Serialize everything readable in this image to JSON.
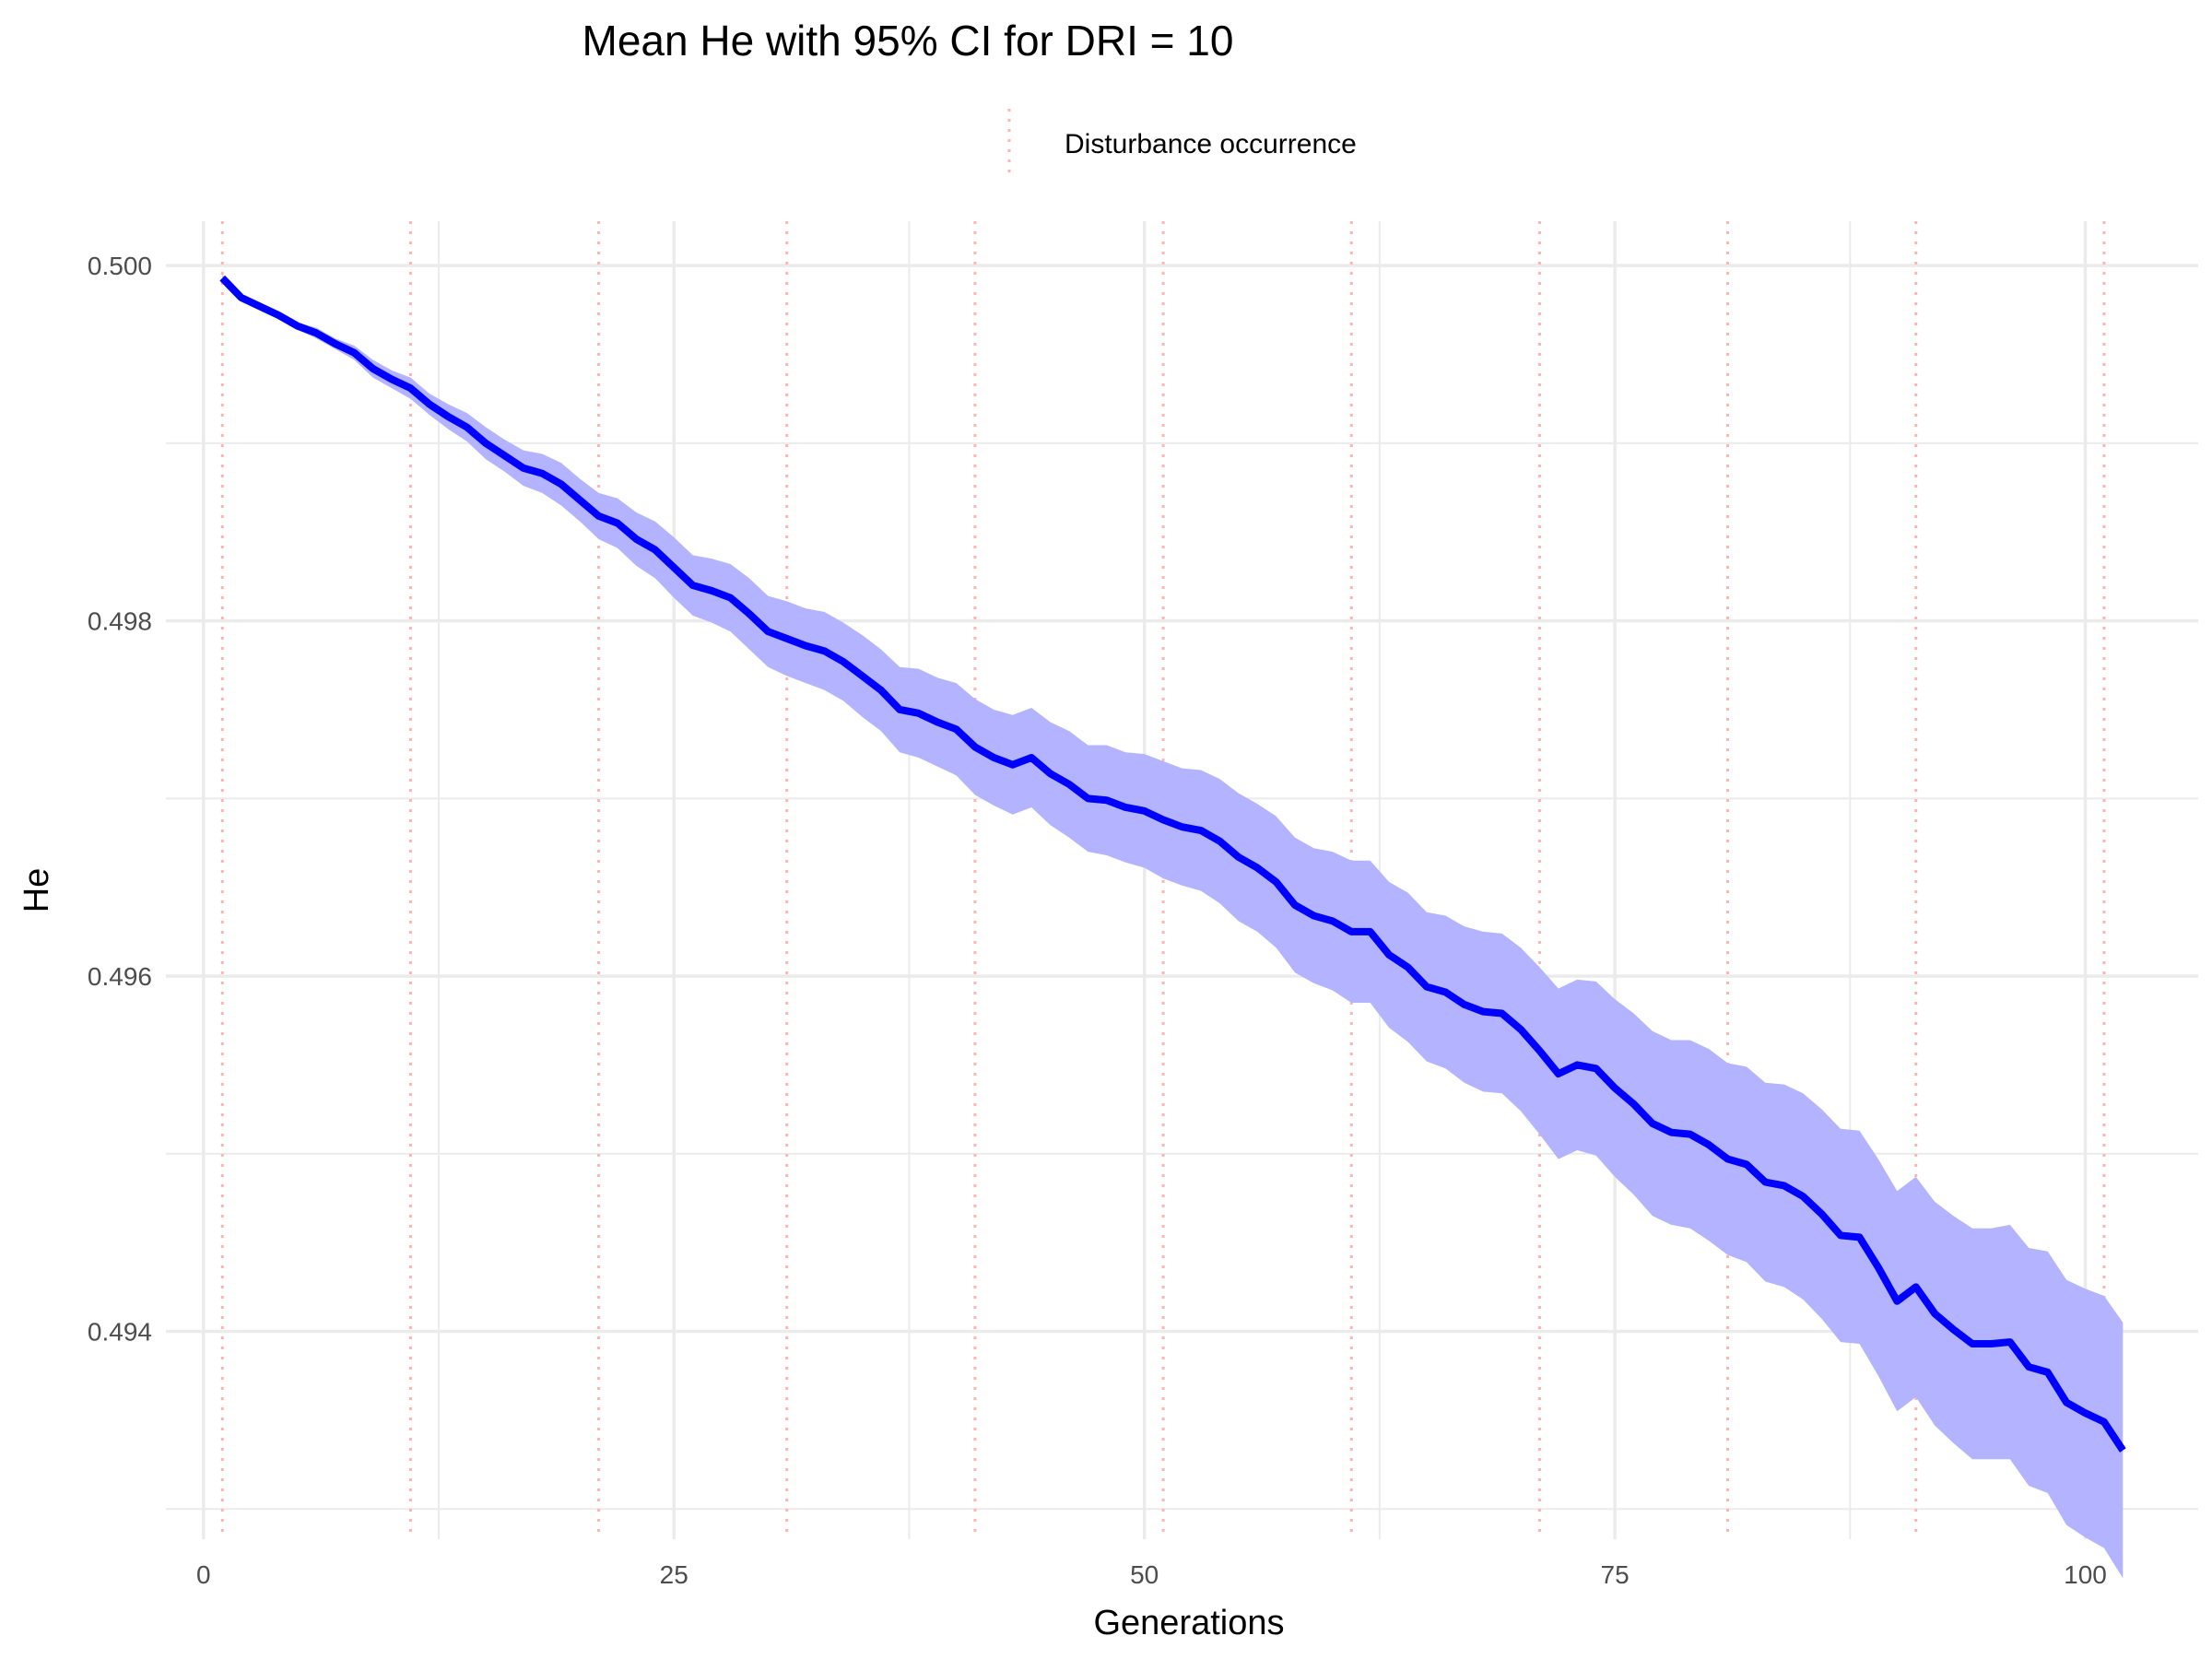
{
  "chart_data": {
    "type": "line",
    "title": "Mean He with 95% CI for DRI = 10",
    "xlabel": "Generations",
    "ylabel": "He",
    "xlim": [
      -2,
      106
    ],
    "ylim": [
      0.49283,
      0.50025
    ],
    "x_ticks": [
      0,
      25,
      50,
      75,
      100
    ],
    "x_tick_labels": [
      "0",
      "25",
      "50",
      "75",
      "100"
    ],
    "y_ticks": [
      0.494,
      0.496,
      0.498,
      0.5
    ],
    "y_tick_labels": [
      "0.494",
      "0.496",
      "0.498",
      "0.500"
    ],
    "grid": true,
    "legend": {
      "position": "top",
      "entries": [
        "Disturbance occurrence"
      ]
    },
    "colors": {
      "line": "#0000ff",
      "band": "#b3b3ff",
      "disturbance": "#ffb3b3",
      "grid": "#ebebeb"
    },
    "disturbance_x": [
      1,
      11,
      21,
      31,
      41,
      51,
      61,
      71,
      81,
      91,
      101
    ],
    "series": [
      {
        "type": "line_with_ci",
        "x": [
          1,
          2,
          3,
          4,
          5,
          6,
          7,
          8,
          9,
          10,
          11,
          12,
          13,
          14,
          15,
          16,
          17,
          18,
          19,
          20,
          21,
          22,
          23,
          24,
          25,
          26,
          27,
          28,
          29,
          30,
          31,
          32,
          33,
          34,
          35,
          36,
          37,
          38,
          39,
          40,
          41,
          42,
          43,
          44,
          45,
          46,
          47,
          48,
          49,
          50,
          51,
          52,
          53,
          54,
          55,
          56,
          57,
          58,
          59,
          60,
          61,
          62,
          63,
          64,
          65,
          66,
          67,
          68,
          69,
          70,
          71,
          72,
          73,
          74,
          75,
          76,
          77,
          78,
          79,
          80,
          81,
          82,
          83,
          84,
          85,
          86,
          87,
          88,
          89,
          90,
          91,
          92,
          93,
          94,
          95,
          96,
          97,
          98,
          99,
          100,
          101,
          102
        ],
        "mean": [
          0.49993,
          0.49982,
          0.49977,
          0.49972,
          0.49966,
          0.49962,
          0.49956,
          0.49951,
          0.49942,
          0.49936,
          0.49931,
          0.49922,
          0.49915,
          0.49909,
          0.499,
          0.49893,
          0.49886,
          0.49883,
          0.49877,
          0.49868,
          0.49859,
          0.49855,
          0.49846,
          0.4984,
          0.4983,
          0.4982,
          0.49817,
          0.49813,
          0.49804,
          0.49794,
          0.4979,
          0.49786,
          0.49783,
          0.49777,
          0.49769,
          0.49761,
          0.4975,
          0.49748,
          0.49743,
          0.49739,
          0.49729,
          0.49723,
          0.49719,
          0.49723,
          0.49714,
          0.49708,
          0.497,
          0.49699,
          0.49695,
          0.49693,
          0.49688,
          0.49684,
          0.49682,
          0.49676,
          0.49667,
          0.49661,
          0.49653,
          0.4964,
          0.49634,
          0.49631,
          0.49625,
          0.49625,
          0.49612,
          0.49605,
          0.49594,
          0.49591,
          0.49584,
          0.4958,
          0.49579,
          0.4957,
          0.49558,
          0.49545,
          0.4955,
          0.49548,
          0.49537,
          0.49528,
          0.49517,
          0.49512,
          0.49511,
          0.49505,
          0.49497,
          0.49494,
          0.49484,
          0.49482,
          0.49476,
          0.49466,
          0.49454,
          0.49453,
          0.49436,
          0.49417,
          0.49425,
          0.4941,
          0.49401,
          0.49393,
          0.49393,
          0.49394,
          0.4938,
          0.49377,
          0.4936,
          0.49354,
          0.49349,
          0.49333
        ],
        "lower": [
          0.49991,
          0.4998,
          0.49975,
          0.4997,
          0.49964,
          0.49959,
          0.49953,
          0.49947,
          0.49937,
          0.49931,
          0.49925,
          0.49916,
          0.49908,
          0.49901,
          0.49891,
          0.49884,
          0.49876,
          0.49872,
          0.49865,
          0.49856,
          0.49846,
          0.49841,
          0.49831,
          0.49824,
          0.49813,
          0.49803,
          0.49799,
          0.49794,
          0.49784,
          0.49774,
          0.49769,
          0.49765,
          0.49761,
          0.49755,
          0.49746,
          0.49738,
          0.49726,
          0.49723,
          0.49718,
          0.49713,
          0.49702,
          0.49696,
          0.49691,
          0.49695,
          0.49685,
          0.49678,
          0.4967,
          0.49668,
          0.49664,
          0.49661,
          0.49655,
          0.49651,
          0.49648,
          0.49641,
          0.49631,
          0.49625,
          0.49616,
          0.49602,
          0.49596,
          0.49592,
          0.49585,
          0.49585,
          0.49571,
          0.49563,
          0.49552,
          0.49548,
          0.4954,
          0.49535,
          0.49534,
          0.49524,
          0.49511,
          0.49497,
          0.49502,
          0.49499,
          0.49487,
          0.49477,
          0.49465,
          0.4946,
          0.49458,
          0.49451,
          0.49443,
          0.49439,
          0.49428,
          0.49425,
          0.49418,
          0.49407,
          0.49394,
          0.49393,
          0.49375,
          0.49355,
          0.49363,
          0.49347,
          0.49337,
          0.49328,
          0.49328,
          0.49328,
          0.49313,
          0.49309,
          0.49291,
          0.49284,
          0.49278,
          0.49261
        ],
        "upper": [
          0.49995,
          0.49984,
          0.49979,
          0.49974,
          0.49968,
          0.49965,
          0.49959,
          0.49955,
          0.49947,
          0.49941,
          0.49937,
          0.49928,
          0.49922,
          0.49917,
          0.49909,
          0.49902,
          0.49896,
          0.49894,
          0.49889,
          0.4988,
          0.49872,
          0.49869,
          0.49861,
          0.49856,
          0.49847,
          0.49837,
          0.49835,
          0.49832,
          0.49824,
          0.49814,
          0.49811,
          0.49807,
          0.49805,
          0.49799,
          0.49792,
          0.49784,
          0.49774,
          0.49773,
          0.49768,
          0.49765,
          0.49756,
          0.4975,
          0.49747,
          0.49751,
          0.49743,
          0.49738,
          0.4973,
          0.4973,
          0.49726,
          0.49725,
          0.49721,
          0.49717,
          0.49716,
          0.49711,
          0.49703,
          0.49697,
          0.4969,
          0.49678,
          0.49672,
          0.4967,
          0.49665,
          0.49665,
          0.49653,
          0.49647,
          0.49636,
          0.49634,
          0.49628,
          0.49625,
          0.49624,
          0.49616,
          0.49605,
          0.49593,
          0.49598,
          0.49597,
          0.49587,
          0.49579,
          0.49569,
          0.49564,
          0.49564,
          0.49559,
          0.49551,
          0.49549,
          0.4954,
          0.49539,
          0.49534,
          0.49525,
          0.49514,
          0.49513,
          0.49497,
          0.49479,
          0.49487,
          0.49473,
          0.49465,
          0.49458,
          0.49458,
          0.4946,
          0.49447,
          0.49445,
          0.49429,
          0.49424,
          0.4942,
          0.49405
        ]
      }
    ]
  }
}
